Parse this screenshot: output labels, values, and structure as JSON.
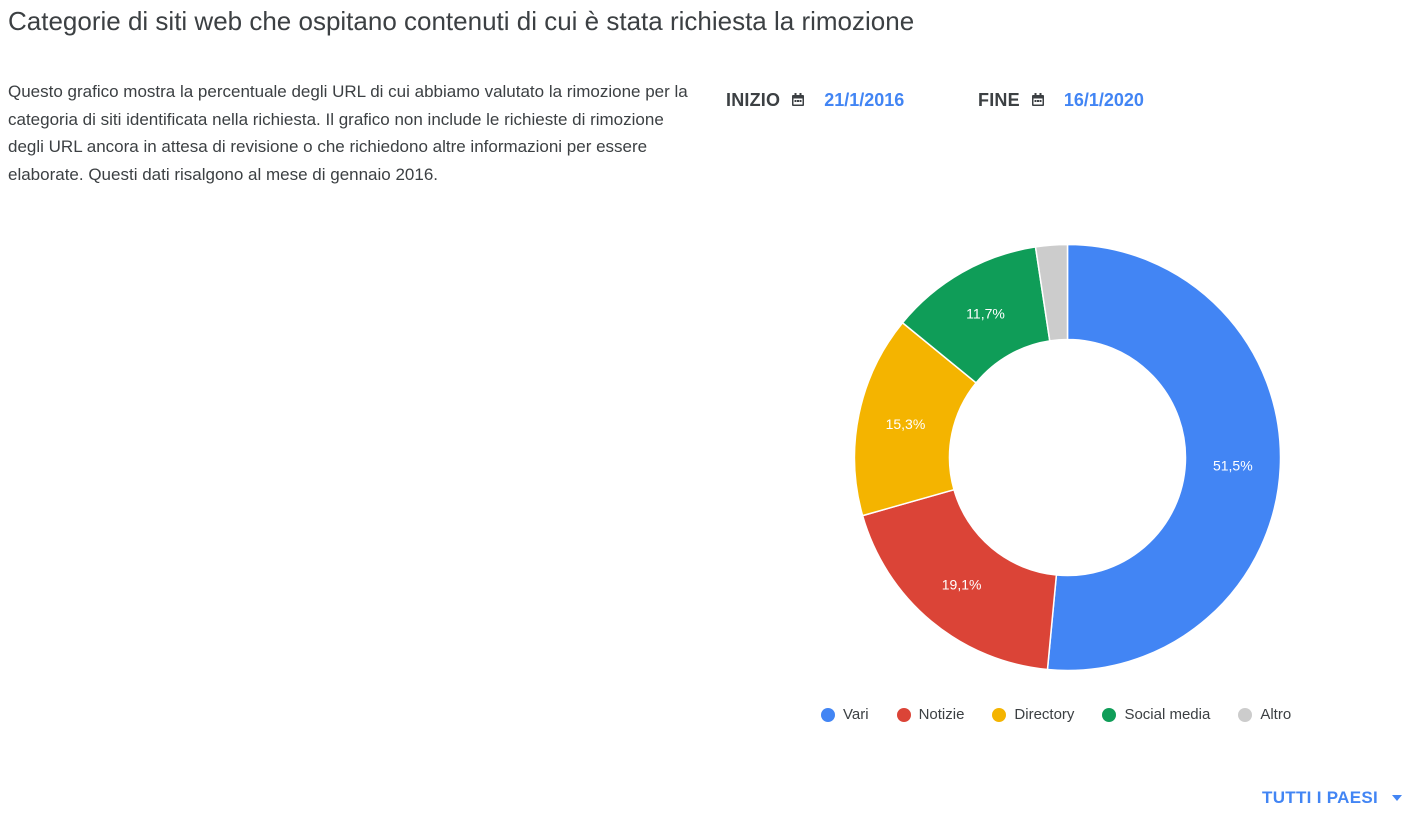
{
  "page": {
    "title": "Categorie di siti web che ospitano contenuti di cui è stata richiesta la rimozione",
    "description": "Questo grafico mostra la percentuale degli URL di cui abbiamo valutato la rimozione per la categoria di siti identificata nella richiesta. Il grafico non include le richieste di rimozione degli URL ancora in attesa di revisione o che richiedono altre informazioni per essere elaborate. Questi dati risalgono al mese di gennaio 2016."
  },
  "date_range": {
    "start_label": "INIZIO",
    "start_value": "21/1/2016",
    "end_label": "FINE",
    "end_value": "16/1/2020",
    "icon": "calendar-icon"
  },
  "chart_data": {
    "type": "pie",
    "donut": true,
    "legend_position": "bottom",
    "categories": [
      "Vari",
      "Notizie",
      "Directory",
      "Social media",
      "Altro"
    ],
    "values": [
      51.5,
      19.1,
      15.3,
      11.7,
      2.4
    ],
    "labels": [
      "51,5%",
      "19,1%",
      "15,3%",
      "11,7%",
      ""
    ],
    "colors": [
      "#4285f4",
      "#db4437",
      "#f4b400",
      "#0f9d58",
      "#cccccc"
    ]
  },
  "filter": {
    "countries_label": "TUTTI I PAESI",
    "icon": "dropdown-arrow-icon"
  }
}
